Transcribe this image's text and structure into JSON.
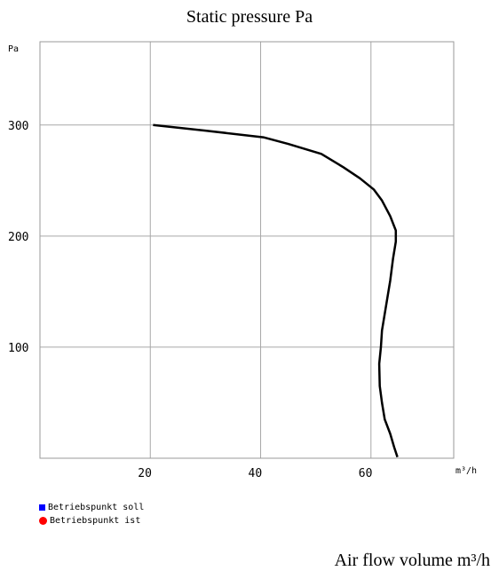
{
  "chart_data": {
    "type": "line",
    "title": "Static pressure Pa",
    "xlabel": "Air flow volume m³/h",
    "x_unit": "m³/h",
    "y_unit": "Pa",
    "xlim": [
      0,
      75
    ],
    "ylim": [
      0,
      375
    ],
    "x_ticks": [
      {
        "value": 20,
        "label": "20"
      },
      {
        "value": 40,
        "label": "40"
      },
      {
        "value": 60,
        "label": "60"
      }
    ],
    "y_ticks": [
      {
        "value": 100,
        "label": "100"
      },
      {
        "value": 200,
        "label": "200"
      },
      {
        "value": 300,
        "label": "300"
      }
    ],
    "grid": true,
    "series": [
      {
        "color": "#000000",
        "points": [
          [
            20.5,
            300
          ],
          [
            30,
            295
          ],
          [
            40.5,
            289
          ],
          [
            45,
            283
          ],
          [
            51,
            274
          ],
          [
            55,
            262
          ],
          [
            58,
            252
          ],
          [
            60.5,
            242
          ],
          [
            62,
            232
          ],
          [
            63.5,
            218
          ],
          [
            64.5,
            205
          ],
          [
            64.5,
            195
          ],
          [
            64,
            180
          ],
          [
            63.5,
            160
          ],
          [
            63,
            145
          ],
          [
            62.5,
            130
          ],
          [
            62,
            115
          ],
          [
            61.8,
            100
          ],
          [
            61.5,
            85
          ],
          [
            61.6,
            65
          ],
          [
            62,
            50
          ],
          [
            62.5,
            35
          ],
          [
            63.5,
            22
          ],
          [
            64.2,
            10
          ],
          [
            64.8,
            1
          ]
        ]
      }
    ],
    "legend": [
      {
        "label": "Betriebspunkt soll",
        "color": "#0000ff",
        "marker": "square"
      },
      {
        "label": "Betriebspunkt ist",
        "color": "#ff0000",
        "marker": "circle"
      }
    ]
  }
}
